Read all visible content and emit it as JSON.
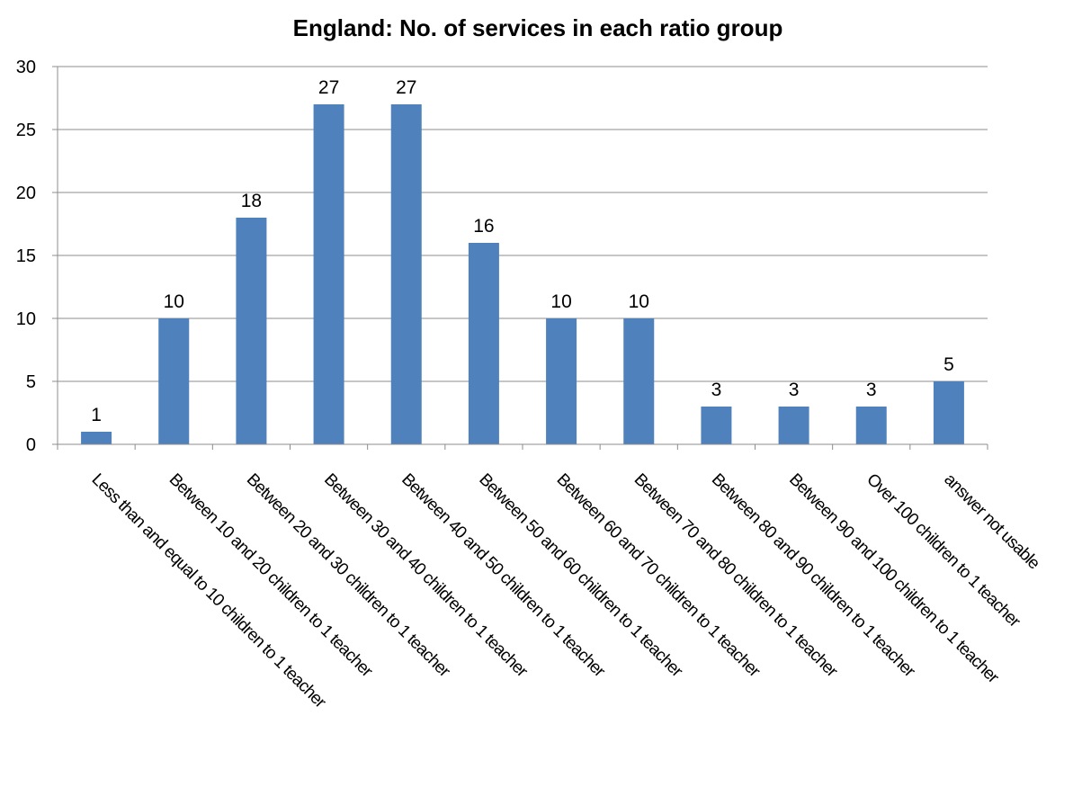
{
  "chart_data": {
    "type": "bar",
    "title": "England: No. of services in each ratio group",
    "xlabel": "",
    "ylabel": "",
    "categories": [
      "Less than and equal to 10 children to 1 teacher",
      "Between 10 and 20 children to 1 teacher",
      "Between 20 and 30 children to 1 teacher",
      "Between 30 and 40 children to 1 teacher",
      "Between 40 and 50 children to 1 teacher",
      "Between 50 and 60 children to 1 teacher",
      "Between 60 and 70 children to 1 teacher",
      "Between 70 and 80 children to 1 teacher",
      "Between 80 and 90 children to 1 teacher",
      "Between 90 and 100 children to 1 teacher",
      "Over 100 children to 1 teacher",
      "answer not usable"
    ],
    "values": [
      1,
      10,
      18,
      27,
      27,
      16,
      10,
      10,
      3,
      3,
      3,
      5
    ],
    "ylim": [
      0,
      30
    ],
    "yticks": [
      0,
      5,
      10,
      15,
      20,
      25,
      30
    ],
    "grid": true,
    "legend": "none",
    "bar_color": "#4f81bd",
    "data_labels": true
  }
}
